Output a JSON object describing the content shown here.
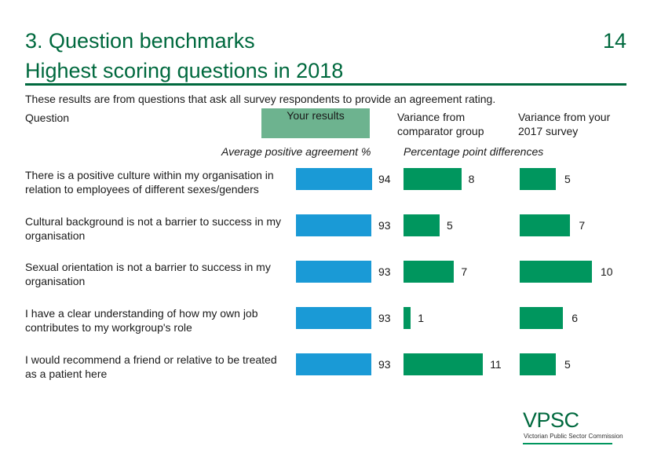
{
  "header": {
    "title_line1": "3. Question benchmarks",
    "title_line2": "Highest scoring questions in 2018",
    "page_number": "14"
  },
  "intro": "These results are from questions that ask all survey respondents to provide an agreement rating.",
  "columns": {
    "question": "Question",
    "your_results": "Your results",
    "comparator": "Variance from comparator group",
    "previous": "Variance from your 2017 survey",
    "avg_subheader": "Average positive agreement %",
    "pp_subheader": "Percentage point differences"
  },
  "rows": [
    {
      "question": "There is a positive culture within my organisation in relation to employees of different sexes/genders",
      "score": 94,
      "comparator": 8,
      "previous": 5
    },
    {
      "question": "Cultural background is not a barrier to success in my organisation",
      "score": 93,
      "comparator": 5,
      "previous": 7
    },
    {
      "question": "Sexual orientation is not a barrier to success in my organisation",
      "score": 93,
      "comparator": 7,
      "previous": 10
    },
    {
      "question": "I have a clear understanding of how my own job contributes to my workgroup's role",
      "score": 93,
      "comparator": 1,
      "previous": 6
    },
    {
      "question": "I would recommend a friend or relative to be treated as a patient here",
      "score": 93,
      "comparator": 11,
      "previous": 5
    }
  ],
  "colors": {
    "blue": "#1a9ad6",
    "green": "#00965e",
    "title": "#00693e",
    "header_box": "#6db38f"
  },
  "logo": {
    "word": "VPSC",
    "subtitle": "Victorian Public Sector Commission"
  }
}
